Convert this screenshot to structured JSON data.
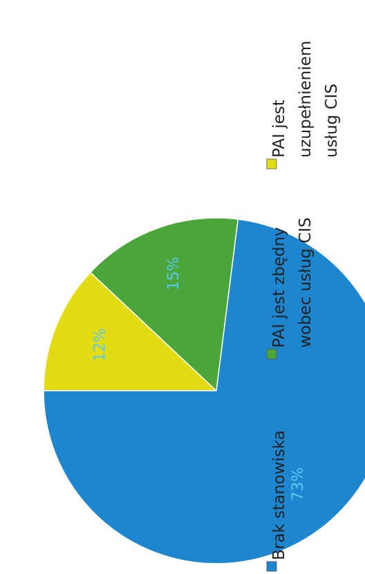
{
  "chart_data": {
    "type": "pie",
    "series": [
      {
        "name": "PAI jest uzupełnieniem usług CIS",
        "color": "#e3dc12",
        "values": [
          12
        ]
      },
      {
        "name": "PAI jest zbędny wobec usług CIS",
        "color": "#4ba63a",
        "values": [
          15
        ]
      },
      {
        "name": "Brak stanowiska",
        "color": "#1d86cf",
        "values": [
          73
        ]
      }
    ],
    "value_labels": [
      "12%",
      "15%",
      "73%"
    ]
  }
}
